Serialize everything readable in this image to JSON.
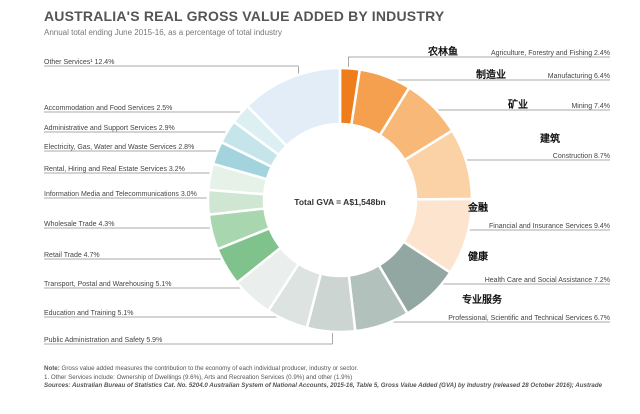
{
  "title": "AUSTRALIA'S REAL GROSS VALUE ADDED BY INDUSTRY",
  "subtitle": "Annual total ending June 2015-16, as a percentage of total industry",
  "center_label": "Total GVA = A$1,548bn",
  "notes": {
    "note_label": "Note:",
    "note": "Gross value added measures the contribution to the economy of each individual producer, industry or sector.",
    "footnote": "1. Other Services include: Ownership of Dwellings (9.6%), Arts and Recreation Services (0.9%) and other (1.9%)",
    "sources": "Sources: Australian Bureau of Statistics Cat. No. 5204.0 Australian System of National Accounts, 2015-16, Table 5, Gross Value Added (GVA) by Industry (released 28 October 2016); Austrade"
  },
  "chart_data": {
    "type": "pie",
    "title": "AUSTRALIA'S REAL GROSS VALUE ADDED BY INDUSTRY",
    "subtitle": "Annual total ending June 2015-16, as a percentage of total industry",
    "unit": "%",
    "slices": [
      {
        "label": "Agriculture, Forestry and Fishing 2.4%",
        "value": 2.4,
        "cn": "农林鱼",
        "color": "#f07d1c"
      },
      {
        "label": "Manufacturing 6.4%",
        "value": 6.4,
        "cn": "制造业",
        "color": "#f4a04e"
      },
      {
        "label": "Mining 7.4%",
        "value": 7.4,
        "cn": "矿业",
        "color": "#f8b978"
      },
      {
        "label": "Construction 8.7%",
        "value": 8.7,
        "cn": "建筑",
        "color": "#fbd2a6"
      },
      {
        "label": "Financial and Insurance Services 9.4%",
        "value": 9.4,
        "cn": "金融",
        "color": "#fde4ce"
      },
      {
        "label": "Health Care and Social Assistance 7.2%",
        "value": 7.2,
        "cn": "健康",
        "color": "#93a7a2"
      },
      {
        "label": "Professional, Scientific and Technical Services 6.7%",
        "value": 6.7,
        "cn": "专业服务",
        "color": "#b3c1bd"
      },
      {
        "label": "Public Administration and Safety 5.9%",
        "value": 5.9,
        "cn": "",
        "color": "#ccd5d2"
      },
      {
        "label": "Education and Training 5.1%",
        "value": 5.1,
        "cn": "",
        "color": "#dde3e1"
      },
      {
        "label": "Transport, Postal and Warehousing 5.1%",
        "value": 5.1,
        "cn": "",
        "color": "#eaeeed"
      },
      {
        "label": "Retail Trade  4.7%",
        "value": 4.7,
        "cn": "",
        "color": "#7fc28c"
      },
      {
        "label": "Wholesale Trade 4.3%",
        "value": 4.3,
        "cn": "",
        "color": "#a8d6ae"
      },
      {
        "label": "Information Media and Telecommunications 3.0%",
        "value": 3.0,
        "cn": "",
        "color": "#cfe7d2"
      },
      {
        "label": "Rental, Hiring and Real Estate Services 3.2%",
        "value": 3.2,
        "cn": "",
        "color": "#e6f1e7"
      },
      {
        "label": "Electricity, Gas, Water and Waste Services 2.8%",
        "value": 2.8,
        "cn": "",
        "color": "#a3d4de"
      },
      {
        "label": "Administrative and Support Services 2.9%",
        "value": 2.9,
        "cn": "",
        "color": "#c6e5eb"
      },
      {
        "label": "Accommodation and Food Services 2.5%",
        "value": 2.5,
        "cn": "",
        "color": "#dcf0f3"
      },
      {
        "label": "Other Services¹  12.4%",
        "value": 12.4,
        "cn": "",
        "color": "#e3edf7"
      }
    ]
  }
}
